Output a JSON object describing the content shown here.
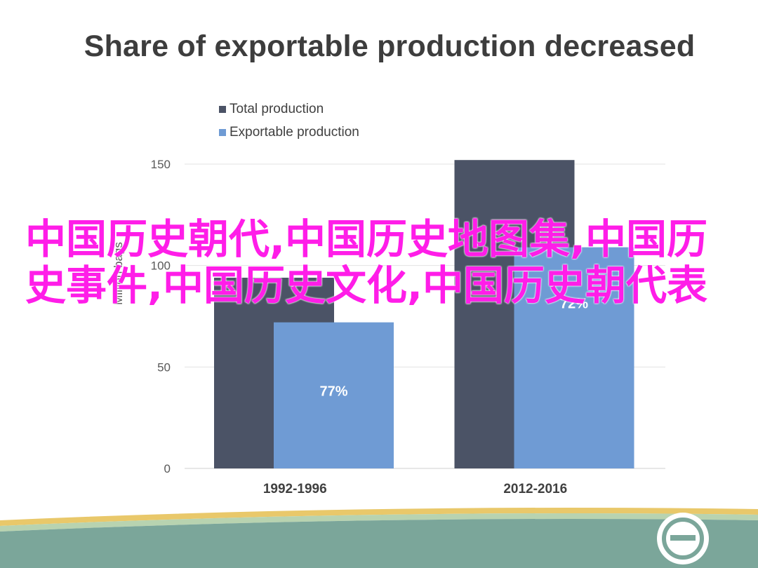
{
  "slide_title": "Share of exportable production decreased",
  "overlay_text": "中国历史朝代,中国历史地图集,中国历史事件,中国历史文化,中国历史朝代表",
  "colors": {
    "total": "#4b5366",
    "exportable": "#6f9bd4",
    "overlay": "#ff1de8",
    "footer_band": "#7ba69a",
    "footer_stripe_yellow": "#e9c86a",
    "footer_stripe_green": "#b8d3b0"
  },
  "chart_data": {
    "type": "bar",
    "categories": [
      "1992-1996",
      "2012-2016"
    ],
    "series": [
      {
        "name": "Total production",
        "values": [
          94,
          152
        ]
      },
      {
        "name": "Exportable production",
        "values": [
          72,
          109
        ]
      }
    ],
    "data_labels": [
      "77%",
      "72%"
    ],
    "ylabel": "Million bags",
    "ylim": [
      0,
      150
    ],
    "yticks": [
      0,
      50,
      100,
      150
    ],
    "grid": true,
    "legend_position": "top-left"
  },
  "footer": {
    "logo_icon": "circle-logo-icon"
  }
}
